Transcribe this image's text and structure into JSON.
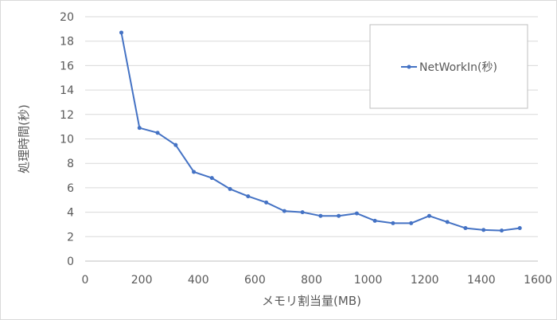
{
  "chart_data": {
    "type": "line",
    "xlabel": "メモリ割当量(MB)",
    "ylabel": "処理時間(秒)",
    "xlim": [
      0,
      1600
    ],
    "ylim": [
      0,
      20
    ],
    "x_ticks": [
      "0",
      "200",
      "400",
      "600",
      "800",
      "1000",
      "1200",
      "1400",
      "1600"
    ],
    "y_ticks": [
      "0",
      "2",
      "4",
      "6",
      "8",
      "10",
      "12",
      "14",
      "16",
      "18",
      "20"
    ],
    "grid": "horizontal",
    "legend_position": "top-right",
    "series_color": "#4472c4",
    "series": [
      {
        "name": "NetWorkIn(秒)",
        "x": [
          128,
          192,
          256,
          320,
          384,
          448,
          512,
          576,
          640,
          704,
          768,
          832,
          896,
          960,
          1024,
          1088,
          1152,
          1216,
          1280,
          1344,
          1408,
          1472,
          1536
        ],
        "y": [
          18.7,
          10.9,
          10.5,
          9.5,
          7.3,
          6.8,
          5.9,
          5.3,
          4.8,
          4.1,
          4.0,
          3.7,
          3.7,
          3.9,
          3.3,
          3.1,
          3.1,
          3.7,
          3.2,
          2.7,
          2.55,
          2.5,
          2.7
        ]
      }
    ]
  }
}
